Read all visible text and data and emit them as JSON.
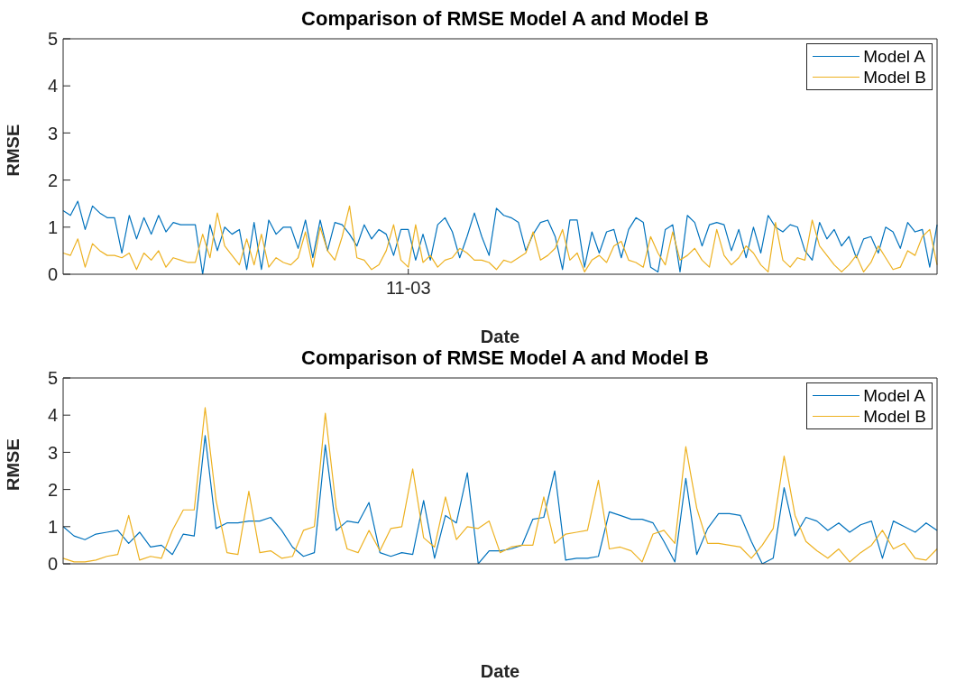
{
  "chart_data": [
    {
      "type": "line",
      "title": "Comparison of RMSE Model A and Model B",
      "xlabel": "Date",
      "ylabel": "RMSE",
      "ylim": [
        0,
        5
      ],
      "yticks": [
        0,
        1,
        2,
        3,
        4,
        5
      ],
      "legend": "top right",
      "grid": false,
      "categories": [
        null,
        null,
        null,
        null,
        null,
        null,
        null,
        null,
        null,
        null,
        null,
        null,
        null,
        null,
        null,
        null,
        null,
        null,
        null,
        null,
        null,
        null,
        null,
        null,
        null,
        null,
        null,
        null,
        null,
        null,
        null,
        null,
        null,
        null,
        null,
        null,
        null,
        null,
        null,
        null,
        null,
        null,
        null,
        null,
        null,
        null,
        null,
        "11-03",
        null,
        null,
        null,
        null,
        null,
        null,
        null,
        null,
        null,
        null,
        null,
        null,
        null,
        null,
        null,
        null,
        null,
        null,
        null,
        null,
        null,
        null,
        null,
        null,
        null,
        null,
        null,
        null,
        null,
        null,
        null,
        null,
        null,
        null,
        null,
        null,
        null,
        null,
        null,
        null,
        null,
        null,
        null,
        null,
        null,
        null,
        null,
        null,
        null,
        null,
        null,
        null,
        null,
        null,
        null,
        null,
        null,
        null,
        null,
        null,
        null,
        null,
        null,
        null,
        null,
        null,
        null,
        null,
        null,
        null,
        null,
        null
      ],
      "series": [
        {
          "name": "Model A",
          "color": "#0072bd",
          "values": [
            1.35,
            1.25,
            1.55,
            0.95,
            1.45,
            1.3,
            1.2,
            1.2,
            0.45,
            1.25,
            0.75,
            1.2,
            0.85,
            1.25,
            0.9,
            1.1,
            1.05,
            1.05,
            1.05,
            0,
            1.05,
            0.5,
            1.0,
            0.85,
            0.95,
            0.1,
            1.1,
            0.1,
            1.15,
            0.85,
            1.0,
            1.0,
            0.55,
            1.15,
            0.35,
            1.15,
            0.5,
            1.1,
            1.05,
            0.85,
            0.6,
            1.05,
            0.75,
            0.95,
            0.85,
            0.4,
            0.95,
            0.95,
            0.3,
            0.85,
            0.3,
            1.05,
            1.2,
            0.9,
            0.35,
            0.8,
            1.3,
            0.8,
            0.4,
            1.4,
            1.25,
            1.2,
            1.1,
            0.5,
            0.85,
            1.1,
            1.15,
            0.8,
            0.1,
            1.15,
            1.15,
            0.15,
            0.9,
            0.45,
            0.9,
            0.95,
            0.35,
            0.95,
            1.2,
            1.1,
            0.15,
            0.05,
            0.95,
            1.05,
            0.05,
            1.25,
            1.1,
            0.6,
            1.05,
            1.1,
            1.05,
            0.5,
            0.95,
            0.35,
            1.0,
            0.45,
            1.25,
            1.0,
            0.9,
            1.05,
            1.0,
            0.5,
            0.3,
            1.1,
            0.75,
            0.95,
            0.6,
            0.8,
            0.35,
            0.75,
            0.8,
            0.45,
            1.0,
            0.9,
            0.55,
            1.1,
            0.9,
            0.95,
            0.15,
            1.05
          ]
        },
        {
          "name": "Model B",
          "color": "#edb120",
          "values": [
            0.45,
            0.4,
            0.75,
            0.15,
            0.65,
            0.5,
            0.4,
            0.4,
            0.35,
            0.45,
            0.1,
            0.45,
            0.3,
            0.5,
            0.15,
            0.35,
            0.3,
            0.25,
            0.25,
            0.85,
            0.35,
            1.3,
            0.6,
            0.4,
            0.2,
            0.75,
            0.2,
            0.85,
            0.15,
            0.35,
            0.25,
            0.2,
            0.35,
            0.9,
            0.15,
            1.0,
            0.5,
            0.3,
            0.8,
            1.45,
            0.35,
            0.3,
            0.1,
            0.2,
            0.5,
            1.05,
            0.3,
            0.15,
            1.05,
            0.25,
            0.4,
            0.15,
            0.3,
            0.35,
            0.55,
            0.45,
            0.3,
            0.3,
            0.25,
            0.1,
            0.3,
            0.25,
            0.35,
            0.45,
            0.9,
            0.3,
            0.4,
            0.55,
            0.95,
            0.3,
            0.45,
            0.05,
            0.3,
            0.4,
            0.25,
            0.6,
            0.7,
            0.3,
            0.25,
            0.15,
            0.8,
            0.45,
            0.2,
            0.9,
            0.3,
            0.4,
            0.55,
            0.3,
            0.15,
            0.95,
            0.4,
            0.2,
            0.35,
            0.6,
            0.45,
            0.2,
            0.05,
            1.1,
            0.3,
            0.15,
            0.35,
            0.3,
            1.15,
            0.6,
            0.4,
            0.2,
            0.05,
            0.2,
            0.4,
            0.05,
            0.25,
            0.6,
            0.35,
            0.1,
            0.15,
            0.5,
            0.4,
            0.8,
            0.95,
            0.2
          ]
        }
      ]
    },
    {
      "type": "line",
      "title": "Comparison of RMSE Model A and Model B",
      "xlabel": "Date",
      "ylabel": "RMSE",
      "ylim": [
        0,
        5
      ],
      "yticks": [
        0,
        1,
        2,
        3,
        4,
        5
      ],
      "legend": "top right",
      "grid": false,
      "tick_labels": "y",
      "categories": [
        null,
        null,
        null,
        null,
        null,
        null,
        null,
        null,
        null,
        null,
        null,
        null,
        null,
        null,
        null,
        null,
        null,
        null,
        null,
        null,
        null,
        null,
        null,
        null,
        null,
        null,
        null,
        null,
        null,
        null,
        null,
        null,
        null,
        null,
        null,
        null,
        null,
        null,
        null,
        null,
        null,
        null,
        null,
        null,
        null,
        null,
        null,
        null,
        null,
        null,
        null,
        null,
        null,
        null,
        null,
        null,
        null,
        null,
        null,
        null,
        null,
        null,
        null,
        null,
        null,
        null,
        null,
        null,
        null,
        null,
        null,
        null,
        null,
        null,
        null,
        null,
        null,
        null,
        null,
        null,
        null
      ],
      "series": [
        {
          "name": "Model A",
          "color": "#0072bd",
          "values": [
            1.0,
            0.75,
            0.65,
            0.8,
            0.85,
            0.9,
            0.55,
            0.85,
            0.45,
            0.5,
            0.25,
            0.8,
            0.75,
            3.45,
            0.95,
            1.1,
            1.1,
            1.15,
            1.15,
            1.25,
            0.9,
            0.45,
            0.2,
            0.3,
            3.2,
            0.9,
            1.15,
            1.1,
            1.65,
            0.3,
            0.2,
            0.3,
            0.25,
            1.7,
            0.15,
            1.3,
            1.1,
            2.45,
            0.0,
            0.35,
            0.35,
            0.4,
            0.5,
            1.2,
            1.25,
            2.5,
            0.1,
            0.15,
            0.15,
            0.2,
            1.4,
            1.3,
            1.2,
            1.2,
            1.1,
            0.6,
            0.05,
            2.3,
            0.25,
            0.95,
            1.35,
            1.35,
            1.3,
            0.6,
            0.0,
            0.15,
            2.05,
            0.75,
            1.25,
            1.15,
            0.9,
            1.1,
            0.85,
            1.05,
            1.15,
            0.15,
            1.15,
            1.0,
            0.85,
            1.1,
            0.9
          ]
        },
        {
          "name": "Model B",
          "color": "#edb120",
          "values": [
            0.15,
            0.05,
            0.05,
            0.1,
            0.2,
            0.25,
            1.3,
            0.1,
            0.2,
            0.15,
            0.9,
            1.45,
            1.45,
            4.2,
            1.7,
            0.3,
            0.25,
            1.95,
            0.3,
            0.35,
            0.15,
            0.2,
            0.9,
            1.0,
            4.05,
            1.5,
            0.4,
            0.3,
            0.9,
            0.35,
            0.95,
            1.0,
            2.55,
            0.7,
            0.45,
            1.8,
            0.65,
            1.0,
            0.95,
            1.15,
            0.3,
            0.45,
            0.5,
            0.5,
            1.8,
            0.55,
            0.8,
            0.85,
            0.9,
            2.25,
            0.4,
            0.45,
            0.35,
            0.05,
            0.8,
            0.9,
            0.55,
            3.15,
            1.5,
            0.55,
            0.55,
            0.5,
            0.45,
            0.15,
            0.5,
            0.95,
            2.9,
            1.3,
            0.6,
            0.35,
            0.15,
            0.4,
            0.05,
            0.3,
            0.5,
            0.9,
            0.4,
            0.55,
            0.15,
            0.1,
            0.4
          ]
        }
      ]
    }
  ]
}
